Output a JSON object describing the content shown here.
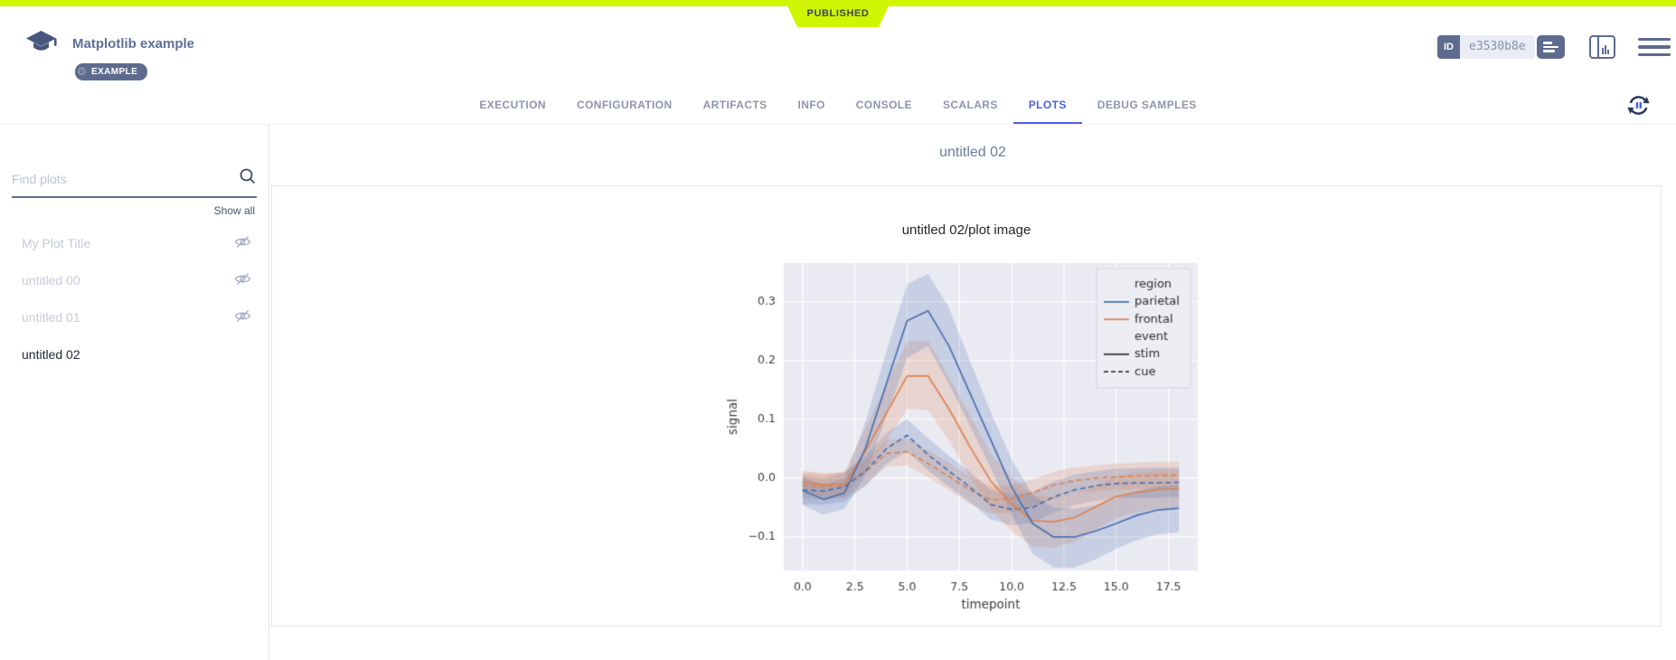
{
  "app": {
    "top_banner": {
      "status": "PUBLISHED",
      "color": "#d0f500"
    },
    "header": {
      "title": "Matplotlib example",
      "badge": "EXAMPLE",
      "logo_icon": "graduation-cap-icon",
      "badge_icon": "gear-icon",
      "id_label": "ID",
      "id_value": "e3530b8e",
      "icons": [
        "details-icon",
        "panel-layout-icon",
        "menu-icon"
      ]
    },
    "tabs": {
      "items": [
        "EXECUTION",
        "CONFIGURATION",
        "ARTIFACTS",
        "INFO",
        "CONSOLE",
        "SCALARS",
        "PLOTS",
        "DEBUG SAMPLES"
      ],
      "active": "PLOTS",
      "active_color": "#4a5fe5",
      "refresh_icon": "auto-refresh-icon"
    },
    "sidebar": {
      "search_placeholder": "Find plots",
      "search_icon": "search-icon",
      "show_all": "Show all",
      "hidden_icon": "eye-slash-icon",
      "items": [
        {
          "label": "My Plot Title",
          "hidden": true,
          "active": false
        },
        {
          "label": "untitled 00",
          "hidden": true,
          "active": false
        },
        {
          "label": "untitled 01",
          "hidden": true,
          "active": false
        },
        {
          "label": "untitled 02",
          "hidden": false,
          "active": true
        }
      ]
    },
    "main": {
      "group_title": "untitled 02"
    }
  },
  "chart_data": {
    "type": "line",
    "title": "untitled 02/plot image",
    "xlabel": "timepoint",
    "ylabel": "signal",
    "x": [
      0,
      1,
      2,
      3,
      4,
      5,
      6,
      7,
      8,
      9,
      10,
      11,
      12,
      13,
      14,
      15,
      16,
      17,
      18
    ],
    "xlim": [
      -0.9,
      18.9
    ],
    "ylim": [
      -0.157,
      0.366
    ],
    "xticks": [
      0.0,
      2.5,
      5.0,
      7.5,
      10.0,
      12.5,
      15.0,
      17.5
    ],
    "yticks": [
      -0.1,
      0.0,
      0.1,
      0.2,
      0.3
    ],
    "background": "#eaeaf2",
    "grid": true,
    "grid_color": "#ffffff",
    "band_alpha": 0.22,
    "legend": {
      "position": "upper right",
      "entries": [
        {
          "label": "region",
          "type": "header"
        },
        {
          "label": "parietal",
          "type": "line",
          "color": "#4c72b0",
          "dash": "solid"
        },
        {
          "label": "frontal",
          "type": "line",
          "color": "#dd8452",
          "dash": "solid"
        },
        {
          "label": "event",
          "type": "header"
        },
        {
          "label": "stim",
          "type": "line",
          "color": "#3a3a3a",
          "dash": "solid"
        },
        {
          "label": "cue",
          "type": "line",
          "color": "#3a3a3a",
          "dash": "dashed"
        }
      ]
    },
    "series": [
      {
        "name": "frontal/cue",
        "color": "#dd8452",
        "dash": "dashed",
        "values": [
          -0.012,
          -0.015,
          -0.012,
          0.01,
          0.042,
          0.045,
          0.025,
          0.003,
          -0.02,
          -0.037,
          -0.035,
          -0.025,
          -0.012,
          -0.004,
          0.0,
          0.002,
          0.004,
          0.005,
          0.005
        ],
        "band_lo": [
          -0.034,
          -0.037,
          -0.034,
          -0.012,
          0.02,
          0.022,
          0.002,
          -0.02,
          -0.043,
          -0.06,
          -0.058,
          -0.048,
          -0.035,
          -0.026,
          -0.022,
          -0.02,
          -0.018,
          -0.017,
          -0.017
        ],
        "band_hi": [
          0.01,
          0.007,
          0.011,
          0.032,
          0.065,
          0.068,
          0.048,
          0.026,
          0.003,
          -0.014,
          -0.012,
          -0.002,
          0.011,
          0.018,
          0.022,
          0.025,
          0.027,
          0.028,
          0.028
        ]
      },
      {
        "name": "parietal/cue",
        "color": "#4c72b0",
        "dash": "dashed",
        "values": [
          -0.02,
          -0.022,
          -0.015,
          0.012,
          0.05,
          0.073,
          0.04,
          0.012,
          -0.015,
          -0.045,
          -0.053,
          -0.05,
          -0.032,
          -0.02,
          -0.013,
          -0.009,
          -0.008,
          -0.008,
          -0.007
        ],
        "band_lo": [
          -0.044,
          -0.045,
          -0.04,
          -0.013,
          0.024,
          0.046,
          0.013,
          -0.014,
          -0.04,
          -0.07,
          -0.08,
          -0.076,
          -0.058,
          -0.046,
          -0.038,
          -0.034,
          -0.033,
          -0.033,
          -0.032
        ],
        "band_hi": [
          0.004,
          0.0,
          0.01,
          0.038,
          0.077,
          0.101,
          0.068,
          0.038,
          0.011,
          -0.02,
          -0.027,
          -0.023,
          -0.006,
          0.006,
          0.012,
          0.016,
          0.017,
          0.018,
          0.018
        ]
      },
      {
        "name": "frontal/stim",
        "color": "#dd8452",
        "dash": "solid",
        "values": [
          -0.006,
          -0.011,
          -0.01,
          0.046,
          0.11,
          0.174,
          0.174,
          0.118,
          0.054,
          -0.005,
          -0.044,
          -0.072,
          -0.074,
          -0.067,
          -0.049,
          -0.031,
          -0.024,
          -0.019,
          -0.018
        ],
        "band_lo": [
          -0.026,
          -0.031,
          -0.031,
          0.01,
          0.062,
          0.118,
          0.116,
          0.064,
          0.002,
          -0.052,
          -0.09,
          -0.116,
          -0.118,
          -0.108,
          -0.088,
          -0.068,
          -0.058,
          -0.052,
          -0.05
        ],
        "band_hi": [
          0.013,
          0.008,
          0.01,
          0.084,
          0.16,
          0.232,
          0.234,
          0.172,
          0.108,
          0.042,
          0.002,
          -0.028,
          -0.032,
          -0.027,
          -0.012,
          0.004,
          0.01,
          0.013,
          0.014
        ]
      },
      {
        "name": "parietal/stim",
        "color": "#4c72b0",
        "dash": "solid",
        "values": [
          -0.021,
          -0.036,
          -0.025,
          0.05,
          0.16,
          0.268,
          0.285,
          0.225,
          0.145,
          0.065,
          -0.015,
          -0.077,
          -0.1,
          -0.1,
          -0.09,
          -0.077,
          -0.063,
          -0.054,
          -0.051
        ],
        "band_lo": [
          -0.046,
          -0.062,
          -0.052,
          0.005,
          0.105,
          0.205,
          0.225,
          0.16,
          0.09,
          0.018,
          -0.062,
          -0.128,
          -0.152,
          -0.152,
          -0.138,
          -0.12,
          -0.105,
          -0.095,
          -0.092
        ],
        "band_hi": [
          0.002,
          -0.012,
          0.0,
          0.095,
          0.215,
          0.33,
          0.348,
          0.29,
          0.2,
          0.112,
          0.032,
          -0.028,
          -0.05,
          -0.052,
          -0.046,
          -0.034,
          -0.022,
          -0.014,
          -0.011
        ]
      }
    ]
  }
}
